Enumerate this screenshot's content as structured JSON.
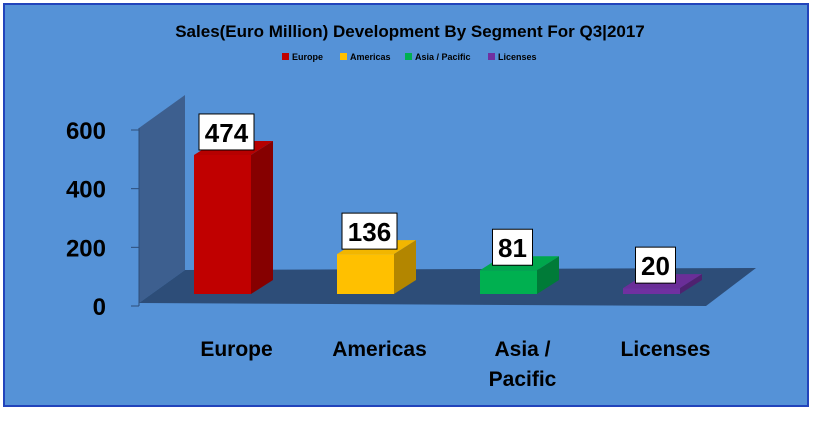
{
  "chart_data": {
    "type": "bar",
    "title": "Sales(Euro Million) Development By Segment For Q3|2017",
    "categories": [
      "Europe",
      "Americas",
      "Asia / Pacific",
      "Licenses"
    ],
    "category_display": [
      [
        "Europe"
      ],
      [
        "Americas"
      ],
      [
        "Asia /",
        "Pacific"
      ],
      [
        "Licenses"
      ]
    ],
    "values": [
      474,
      136,
      81,
      20
    ],
    "colors": [
      "#c00000",
      "#ffc000",
      "#00b050",
      "#7030a0"
    ],
    "legend": [
      "Europe",
      "Americas",
      "Asia / Pacific",
      "Licenses"
    ],
    "legend_position": "top",
    "ylim": [
      0,
      600
    ],
    "yticks": [
      "0",
      "200",
      "400",
      "600"
    ],
    "ytick_values": [
      0,
      200,
      400,
      600
    ],
    "data_labels": [
      "474",
      "136",
      "81",
      "20"
    ],
    "chart_style": "3d-column",
    "background": "#5592d7",
    "border": "#2244bb",
    "wall": "#3d5f8f",
    "floor": "#2d4d78"
  }
}
